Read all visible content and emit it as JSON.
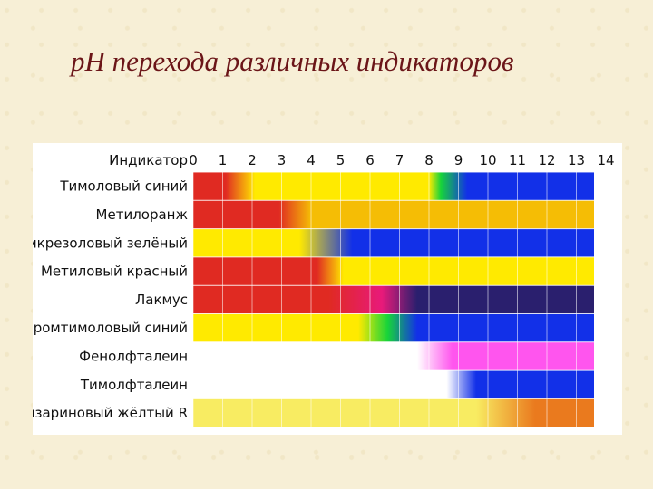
{
  "slide": {
    "title": "pH перехода различных индикаторов"
  },
  "chart_data": {
    "type": "table",
    "header_label": "Индикатор",
    "ph_ticks": [
      "0",
      "1",
      "2",
      "3",
      "4",
      "5",
      "6",
      "7",
      "8",
      "9",
      "10",
      "11",
      "12",
      "13",
      "14"
    ],
    "ph_range": [
      0,
      13.6
    ],
    "indicators": [
      {
        "name": "Тимоловый синий",
        "stops": [
          [
            0,
            "#e02a22"
          ],
          [
            1.1,
            "#e02a22"
          ],
          [
            2.1,
            "#ffea00"
          ],
          [
            8.0,
            "#ffea00"
          ],
          [
            8.4,
            "#17d43a"
          ],
          [
            9.3,
            "#1230e8"
          ],
          [
            13.6,
            "#1230e8"
          ]
        ]
      },
      {
        "name": "Метилоранж",
        "stops": [
          [
            0,
            "#e02a22"
          ],
          [
            2.9,
            "#e02a22"
          ],
          [
            4.0,
            "#f5bd05"
          ],
          [
            13.6,
            "#f5bd05"
          ]
        ]
      },
      {
        "name": "Бромкрезоловый зелёный",
        "stops": [
          [
            0,
            "#ffea00"
          ],
          [
            3.6,
            "#ffea00"
          ],
          [
            5.4,
            "#1230e8"
          ],
          [
            13.6,
            "#1230e8"
          ]
        ]
      },
      {
        "name": "Метиловый красный",
        "stops": [
          [
            0,
            "#e02a22"
          ],
          [
            4.2,
            "#e02a22"
          ],
          [
            5.1,
            "#ffea00"
          ],
          [
            13.6,
            "#ffea00"
          ]
        ]
      },
      {
        "name": "Лакмус",
        "stops": [
          [
            0,
            "#e02a22"
          ],
          [
            4.6,
            "#e02a22"
          ],
          [
            6.4,
            "#e81a7a"
          ],
          [
            7.6,
            "#2a1f6e"
          ],
          [
            13.6,
            "#2a1f6e"
          ]
        ]
      },
      {
        "name": "Бромтимоловый синий",
        "stops": [
          [
            0,
            "#ffea00"
          ],
          [
            5.6,
            "#ffea00"
          ],
          [
            6.6,
            "#17d43a"
          ],
          [
            7.6,
            "#1230e8"
          ],
          [
            13.6,
            "#1230e8"
          ]
        ]
      },
      {
        "name": "Фенолфталеин",
        "stops": [
          [
            0,
            "#ffffff"
          ],
          [
            7.6,
            "#ffffff"
          ],
          [
            8.8,
            "#ff55ee"
          ],
          [
            13.6,
            "#ff55ee"
          ]
        ]
      },
      {
        "name": "Тимолфталеин",
        "stops": [
          [
            0,
            "#ffffff"
          ],
          [
            8.6,
            "#ffffff"
          ],
          [
            9.6,
            "#1230e8"
          ],
          [
            13.6,
            "#1230e8"
          ]
        ]
      },
      {
        "name": "Ализариновый жёлтый R",
        "stops": [
          [
            0,
            "#f8ec62"
          ],
          [
            9.6,
            "#f8ec62"
          ],
          [
            11.6,
            "#ea7a1e"
          ],
          [
            13.6,
            "#ea7a1e"
          ]
        ]
      }
    ],
    "grid": true,
    "colors": {
      "red": "#e02a22",
      "yellow": "#ffea00",
      "green": "#17d43a",
      "blue": "#1230e8",
      "orange": "#f5bd05",
      "dark_blue": "#2a1f6e",
      "magenta": "#ff55ee",
      "dark_orange": "#ea7a1e"
    }
  }
}
